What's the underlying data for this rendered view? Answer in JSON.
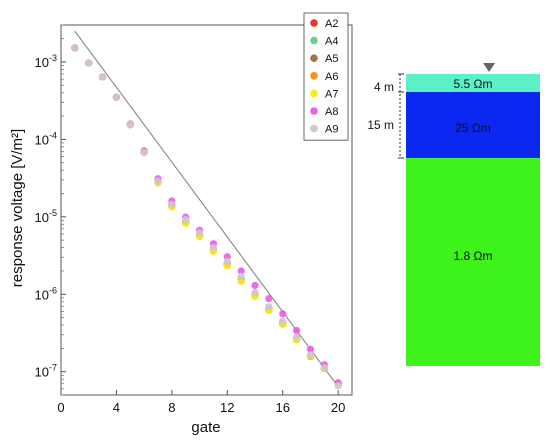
{
  "chart_data": [
    {
      "type": "scatter",
      "title": "",
      "xlabel": "gate",
      "ylabel": "response voltage [V/m²]",
      "xlim": [
        0,
        21
      ],
      "ylim": [
        5e-08,
        0.003
      ],
      "yscale": "log",
      "x_ticks": [
        0,
        4,
        8,
        12,
        16,
        20
      ],
      "x_tick_labels": [
        "0",
        "4",
        "8",
        "12",
        "16",
        "20"
      ],
      "y_ticks": [
        1e-07,
        1e-06,
        1e-05,
        0.0001,
        0.001
      ],
      "y_tick_labels": [
        {
          "base": "10",
          "exp": "-7"
        },
        {
          "base": "10",
          "exp": "-6"
        },
        {
          "base": "10",
          "exp": "-5"
        },
        {
          "base": "10",
          "exp": "-4"
        },
        {
          "base": "10",
          "exp": "-3"
        }
      ],
      "grid": false,
      "legend_position": "top-right",
      "x": [
        1,
        2,
        3,
        4,
        5,
        6,
        7,
        8,
        9,
        10,
        11,
        12,
        13,
        14,
        15,
        16,
        17,
        18,
        19,
        20
      ],
      "series": [
        {
          "name": "A2",
          "color": "#e8332a",
          "values": [
            0.00152,
            0.00097,
            0.00064,
            0.00035,
            0.000155,
            6.8e-05,
            2.9e-05,
            1.42e-05,
            8.5e-06,
            5.7e-06,
            3.7e-06,
            2.45e-06,
            1.52e-06,
            9.7e-07,
            6.4e-07,
            4.2e-07,
            2.6e-07,
            1.58e-07,
            1.1e-07,
            6.9e-08
          ]
        },
        {
          "name": "A4",
          "color": "#6ccf8e",
          "values": [
            0.00152,
            0.00097,
            0.00064,
            0.00035,
            0.000155,
            6.8e-05,
            2.9e-05,
            1.42e-05,
            8.5e-06,
            5.7e-06,
            3.7e-06,
            2.45e-06,
            1.52e-06,
            9.7e-07,
            6.4e-07,
            4.2e-07,
            2.65e-07,
            1.6e-07,
            1.1e-07,
            6.8e-08
          ]
        },
        {
          "name": "A5",
          "color": "#a2724a",
          "values": [
            0.00152,
            0.00097,
            0.00064,
            0.00035,
            0.000155,
            6.8e-05,
            2.9e-05,
            1.42e-05,
            8.5e-06,
            5.7e-06,
            3.7e-06,
            2.45e-06,
            1.52e-06,
            9.7e-07,
            6.4e-07,
            4.2e-07,
            2.65e-07,
            1.6e-07,
            1.1e-07,
            6.8e-08
          ]
        },
        {
          "name": "A6",
          "color": "#f7931e",
          "values": [
            0.00152,
            0.00097,
            0.00064,
            0.00035,
            0.000155,
            6.8e-05,
            2.75e-05,
            1.35e-05,
            8.3e-06,
            5.6e-06,
            3.6e-06,
            2.35e-06,
            1.48e-06,
            9.4e-07,
            6.2e-07,
            4.1e-07,
            2.6e-07,
            1.6e-07,
            1.1e-07,
            6.8e-08
          ]
        },
        {
          "name": "A7",
          "color": "#f4ee1a",
          "values": [
            0.00152,
            0.00097,
            0.00064,
            0.00035,
            0.000155,
            6.8e-05,
            2.75e-05,
            1.35e-05,
            8.3e-06,
            5.6e-06,
            3.6e-06,
            2.35e-06,
            1.48e-06,
            9.4e-07,
            6.2e-07,
            4.1e-07,
            2.6e-07,
            1.6e-07,
            1.1e-07,
            6.8e-08
          ]
        },
        {
          "name": "A8",
          "color": "#ef5ce6",
          "values": [
            0.00152,
            0.00097,
            0.00064,
            0.00035,
            0.000158,
            7.1e-05,
            3.1e-05,
            1.6e-05,
            9.9e-06,
            6.7e-06,
            4.5e-06,
            3.05e-06,
            2e-06,
            1.3e-06,
            8.8e-07,
            5.6e-07,
            3.4e-07,
            1.95e-07,
            1.23e-07,
            7.2e-08
          ]
        },
        {
          "name": "A9",
          "color": "#cfc8cc",
          "values": [
            0.00152,
            0.00097,
            0.00064,
            0.00035,
            0.000155,
            6.8e-05,
            2.9e-05,
            1.45e-05,
            9.2e-06,
            6.2e-06,
            4e-06,
            2.65e-06,
            1.7e-06,
            1.05e-06,
            6.9e-07,
            4.5e-07,
            2.8e-07,
            1.65e-07,
            1.12e-07,
            6.6e-08
          ]
        }
      ],
      "fit_line": {
        "color": "#888888",
        "x": [
          1,
          20
        ],
        "values": [
          0.0025,
          6.4e-08
        ]
      }
    },
    {
      "type": "diagram",
      "title": "",
      "marker_icon": "triangle-down-icon",
      "marker_color": "#666666",
      "depth_labels": [
        "4 m",
        "15 m"
      ],
      "layers": [
        {
          "label": "5.5 Ωm",
          "color": "#5cf0c8",
          "thickness_m": 4
        },
        {
          "label": "25 Ωm",
          "color": "#0a28f0",
          "thickness_m": 15
        },
        {
          "label": "1.8 Ωm",
          "color": "#3ef21c",
          "thickness_m": null
        }
      ]
    }
  ]
}
